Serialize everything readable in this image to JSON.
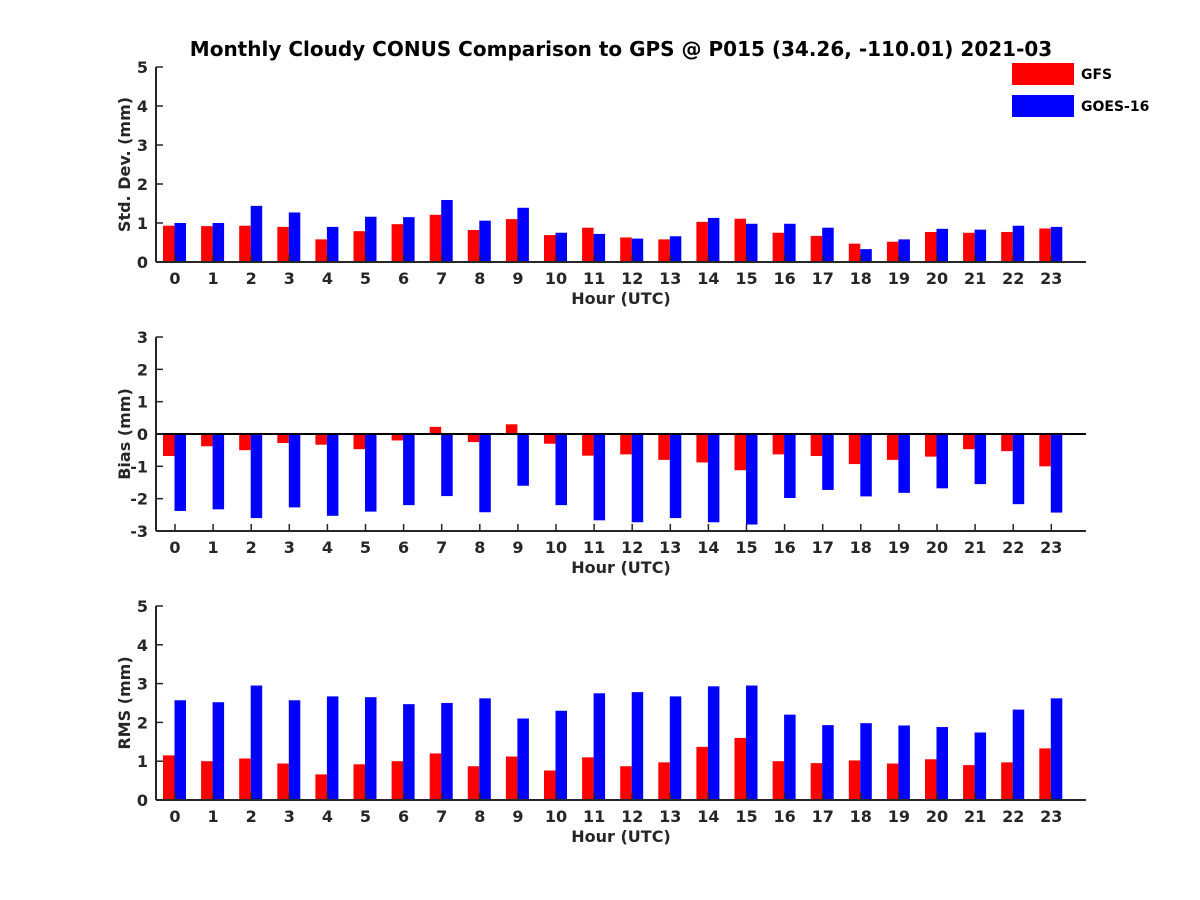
{
  "figure": {
    "title": "Monthly Cloudy CONUS Comparison to GPS @ P015 (34.26, -110.01) 2021-03"
  },
  "legend": {
    "placement": "top-right",
    "items": [
      {
        "name": "GFS",
        "color": "#ff0000"
      },
      {
        "name": "GOES-16",
        "color": "#0000ff"
      }
    ]
  },
  "chart_data": [
    {
      "type": "bar",
      "title": "Monthly Cloudy CONUS Comparison to GPS @ P015 (34.26, -110.01) 2021-03",
      "xlabel": "Hour (UTC)",
      "ylabel": "Std. Dev. (mm)",
      "ylim": [
        0,
        5
      ],
      "yticks": [
        0,
        1,
        2,
        3,
        4,
        5
      ],
      "grid": false,
      "categories": [
        "0",
        "1",
        "2",
        "3",
        "4",
        "5",
        "6",
        "7",
        "8",
        "9",
        "10",
        "11",
        "12",
        "13",
        "14",
        "15",
        "16",
        "17",
        "18",
        "19",
        "20",
        "21",
        "22",
        "23"
      ],
      "series": [
        {
          "name": "GFS",
          "color": "#ff0000",
          "values": [
            0.93,
            0.92,
            0.93,
            0.9,
            0.58,
            0.79,
            0.97,
            1.21,
            0.82,
            1.1,
            0.69,
            0.88,
            0.63,
            0.58,
            1.03,
            1.11,
            0.75,
            0.67,
            0.47,
            0.52,
            0.77,
            0.75,
            0.77,
            0.86
          ]
        },
        {
          "name": "GOES-16",
          "color": "#0000ff",
          "values": [
            1.0,
            1.0,
            1.44,
            1.27,
            0.9,
            1.16,
            1.15,
            1.59,
            1.06,
            1.39,
            0.75,
            0.72,
            0.6,
            0.66,
            1.13,
            0.98,
            0.98,
            0.88,
            0.33,
            0.58,
            0.85,
            0.83,
            0.93,
            0.9
          ]
        }
      ]
    },
    {
      "type": "bar",
      "xlabel": "Hour (UTC)",
      "ylabel": "Bias (mm)",
      "ylim": [
        -3,
        3
      ],
      "yticks": [
        -3,
        -2,
        -1,
        0,
        1,
        2,
        3
      ],
      "baseline": 0,
      "grid": false,
      "categories": [
        "0",
        "1",
        "2",
        "3",
        "4",
        "5",
        "6",
        "7",
        "8",
        "9",
        "10",
        "11",
        "12",
        "13",
        "14",
        "15",
        "16",
        "17",
        "18",
        "19",
        "20",
        "21",
        "22",
        "23"
      ],
      "series": [
        {
          "name": "GFS",
          "color": "#ff0000",
          "values": [
            -0.68,
            -0.38,
            -0.5,
            -0.28,
            -0.33,
            -0.47,
            -0.2,
            0.22,
            -0.25,
            0.3,
            -0.3,
            -0.67,
            -0.63,
            -0.8,
            -0.88,
            -1.12,
            -0.63,
            -0.68,
            -0.93,
            -0.8,
            -0.7,
            -0.47,
            -0.53,
            -1.0
          ]
        },
        {
          "name": "GOES-16",
          "color": "#0000ff",
          "values": [
            -2.38,
            -2.33,
            -2.6,
            -2.27,
            -2.53,
            -2.4,
            -2.2,
            -1.92,
            -2.42,
            -1.6,
            -2.2,
            -2.67,
            -2.73,
            -2.6,
            -2.73,
            -2.8,
            -1.98,
            -1.73,
            -1.93,
            -1.82,
            -1.68,
            -1.55,
            -2.17,
            -2.43
          ]
        }
      ]
    },
    {
      "type": "bar",
      "xlabel": "Hour (UTC)",
      "ylabel": "RMS (mm)",
      "ylim": [
        0,
        5
      ],
      "yticks": [
        0,
        1,
        2,
        3,
        4,
        5
      ],
      "grid": false,
      "categories": [
        "0",
        "1",
        "2",
        "3",
        "4",
        "5",
        "6",
        "7",
        "8",
        "9",
        "10",
        "11",
        "12",
        "13",
        "14",
        "15",
        "16",
        "17",
        "18",
        "19",
        "20",
        "21",
        "22",
        "23"
      ],
      "series": [
        {
          "name": "GFS",
          "color": "#ff0000",
          "values": [
            1.15,
            1.0,
            1.07,
            0.94,
            0.66,
            0.92,
            1.0,
            1.2,
            0.87,
            1.12,
            0.76,
            1.1,
            0.87,
            0.97,
            1.37,
            1.6,
            1.0,
            0.95,
            1.02,
            0.94,
            1.05,
            0.9,
            0.97,
            1.33
          ]
        },
        {
          "name": "GOES-16",
          "color": "#0000ff",
          "values": [
            2.57,
            2.52,
            2.95,
            2.57,
            2.67,
            2.65,
            2.47,
            2.5,
            2.62,
            2.1,
            2.3,
            2.75,
            2.78,
            2.67,
            2.93,
            2.95,
            2.2,
            1.93,
            1.98,
            1.92,
            1.88,
            1.74,
            2.33,
            2.62
          ]
        }
      ]
    }
  ]
}
